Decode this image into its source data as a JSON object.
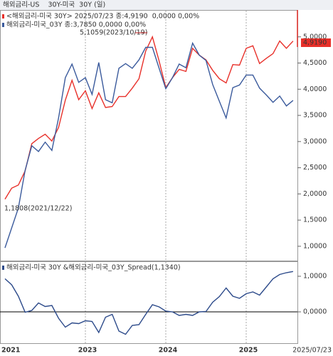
{
  "chart_data": [
    {
      "type": "line",
      "title": "해외금리-US    30Y-미국  30Y (일)",
      "series": [
        {
          "name": "<해외금리-미국 30Y> 2025/07/23 종:4,9190  0,0000 0,00%",
          "color": "#e8302a",
          "values": [
            1.9,
            2.11,
            2.17,
            2.44,
            2.96,
            3.06,
            3.14,
            3.01,
            3.27,
            3.79,
            4.17,
            3.8,
            3.97,
            3.63,
            3.93,
            3.65,
            3.67,
            3.86,
            3.86,
            4.02,
            4.2,
            4.73,
            5.0,
            4.54,
            4.03,
            4.22,
            4.38,
            4.34,
            4.78,
            4.65,
            4.56,
            4.36,
            4.2,
            4.12,
            4.47,
            4.46,
            4.78,
            4.83,
            4.49,
            4.59,
            4.68,
            4.92,
            4.78,
            4.919
          ]
        },
        {
          "name": "해외금리-미국_03Y 종:3,7850 0,0000 0,00%",
          "color": "#3a5a9c",
          "values": [
            0.97,
            1.35,
            1.73,
            2.45,
            2.92,
            2.81,
            2.99,
            2.83,
            3.45,
            4.22,
            4.48,
            4.13,
            4.22,
            3.9,
            4.51,
            3.8,
            3.74,
            4.4,
            4.49,
            4.4,
            4.56,
            4.8,
            4.8,
            4.4,
            4.01,
            4.22,
            4.48,
            4.41,
            4.88,
            4.65,
            4.55,
            4.09,
            3.77,
            3.45,
            4.03,
            4.08,
            4.27,
            4.27,
            4.02,
            3.89,
            3.75,
            3.87,
            3.68,
            3.785
          ]
        }
      ],
      "annotations": [
        "5,1059(2023/10/19)",
        "1,1808(2021/12/22)"
      ],
      "last_label": "4,9190",
      "ylim": [
        0.74,
        5.5
      ],
      "yticks": [
        {
          "value": 1,
          "label": "1,0000"
        },
        {
          "value": 1.5,
          "label": "1,5000"
        },
        {
          "value": 2,
          "label": "2,0000"
        },
        {
          "value": 2.5,
          "label": "2,5000"
        },
        {
          "value": 3,
          "label": "3,0000"
        },
        {
          "value": 3.5,
          "label": "3,5000"
        },
        {
          "value": 4,
          "label": "4,0000"
        },
        {
          "value": 4.5,
          "label": "4,5000"
        },
        {
          "value": 5,
          "label": "5,0000"
        }
      ]
    },
    {
      "type": "line",
      "categories": [
        "2021",
        null,
        null,
        null,
        null,
        null,
        null,
        null,
        null,
        null,
        null,
        null,
        "2023",
        null,
        null,
        null,
        null,
        null,
        null,
        null,
        null,
        null,
        null,
        null,
        "2024",
        null,
        null,
        null,
        null,
        null,
        null,
        null,
        null,
        null,
        null,
        null,
        "2025",
        null,
        null,
        null,
        null,
        null,
        null,
        null
      ],
      "x_end_label": "2025/07/23",
      "series": [
        {
          "name": "해외금리-미국 30Y &해외금리-미국_03Y_Spread(1,1340)",
          "color": "#2c4a8a",
          "values": [
            0.93,
            0.76,
            0.44,
            -0.01,
            0.04,
            0.25,
            0.15,
            0.18,
            -0.18,
            -0.43,
            -0.31,
            -0.33,
            -0.25,
            -0.27,
            -0.58,
            -0.15,
            -0.07,
            -0.54,
            -0.63,
            -0.38,
            -0.36,
            -0.07,
            0.2,
            0.14,
            0.02,
            0.0,
            -0.1,
            -0.07,
            -0.1,
            0.0,
            0.01,
            0.27,
            0.43,
            0.67,
            0.44,
            0.38,
            0.51,
            0.56,
            0.47,
            0.7,
            0.93,
            1.05,
            1.1,
            1.134
          ]
        }
      ],
      "ylim": [
        -0.88,
        1.4
      ],
      "yticks": [
        {
          "value": 0,
          "label": "0,0000"
        },
        {
          "value": 1,
          "label": "1,0000"
        }
      ]
    }
  ]
}
